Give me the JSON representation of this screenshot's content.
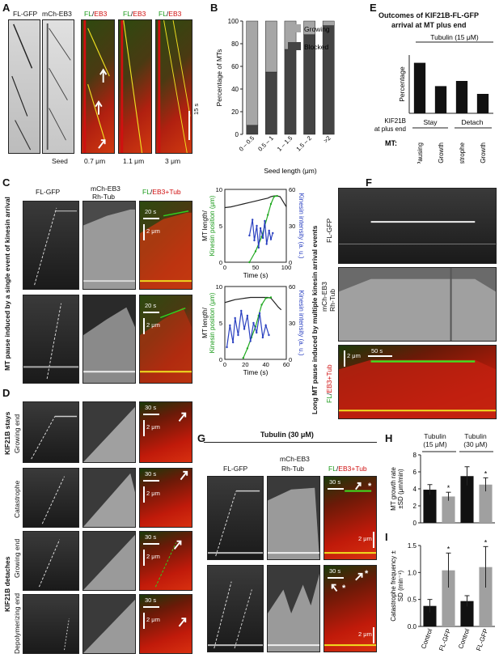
{
  "panelA": {
    "label": "A",
    "ch1": "FL-GFP",
    "ch2": "mCh-EB3",
    "ch3a": "FL",
    "slash": "/",
    "ch3b": "EB3",
    "seed": "Seed",
    "seed1": "0.7 μm",
    "seed2": "1.1 μm",
    "seed3": "3 μm",
    "time": "15 s"
  },
  "panelB": {
    "label": "B"
  },
  "panelC": {
    "label": "C",
    "ch1": "FL-GFP",
    "ch2a": "mCh-EB3",
    "ch2b": "Rh-Tub",
    "ch3a": "FL",
    "slash": "/",
    "ch3b": "EB3+Tub",
    "side": "MT pause induced by  a single event of kinesin arrival",
    "t20a": "20 s",
    "d2a": "2 μm",
    "t20b": "20 s",
    "d2b": "2 μm"
  },
  "panelD": {
    "label": "D",
    "stays": "KIF21B stays",
    "detaches": "KIF21B  detaches",
    "growing1": "Growing end",
    "catastrophe": "Catastrophe",
    "growing2": "Growing end",
    "depoly": "Depolymerizing end",
    "t30": "30 s",
    "d2": "2 μm"
  },
  "panelE": {
    "label": "E",
    "title1": "Outcomes of KIF21B-FL-GFP",
    "title2": "arrival at MT plus end",
    "tubulin": "Tubulin (15 μM)",
    "kif1": "KIF21B",
    "kif2": "at plus end",
    "stay": "Stay",
    "detach": "Detach",
    "mt": "MT:"
  },
  "panelF": {
    "label": "F",
    "ch1": "FL-GFP",
    "ch2a": "mCh-EB3",
    "ch2b": "Rh-Tub",
    "ch3a": "FL",
    "slash": "/",
    "ch3b": "EB3+Tub",
    "side": "Long MT pause induced by multiple kinesin arrival events",
    "t50": "50 s",
    "d2": "2 μm"
  },
  "panelG": {
    "label": "G",
    "header": "Tubulin (30 μM)",
    "ch1": "FL-GFP",
    "ch2a": "mCh-EB3",
    "ch2b": "Rh-Tub",
    "ch3a": "FL",
    "slash": "/",
    "ch3b": "EB3+Tub",
    "t30": "30 s",
    "d2": "2 μm",
    "star": "*"
  },
  "panelH": {
    "label": "H",
    "tub15": "Tubulin (15 μM)",
    "tub30": "Tubulin (30 μM)",
    "star": "*"
  },
  "panelI": {
    "label": "I",
    "star": "*"
  },
  "chart_data": [
    {
      "id": "B",
      "type": "bar",
      "stacked": true,
      "categories": [
        "0 – 0.5",
        "0.5 – 1",
        "1 – 1.5",
        "1.5 – 2",
        ">2"
      ],
      "series": [
        {
          "name": "Blocked",
          "values": [
            8,
            55,
            75,
            88,
            96
          ],
          "color": "#444444"
        },
        {
          "name": "Growing",
          "values": [
            92,
            45,
            25,
            12,
            4
          ],
          "color": "#a6a6a6"
        }
      ],
      "xlabel": "Seed length (μm)",
      "ylabel": "Percentage of MTs",
      "ylim": [
        0,
        100
      ],
      "yticks": [
        0,
        20,
        40,
        60,
        80,
        100
      ],
      "legend": "top-right"
    },
    {
      "id": "C1",
      "type": "line",
      "xlabel": "Time (s)",
      "ylabel_left": "MT length/ Kinesin position (μm)",
      "ylabel_right": "Kinesin intensity (a. u.)",
      "xlim": [
        0,
        100
      ],
      "xticks": [
        0,
        50,
        100
      ],
      "ylim_left": [
        0,
        10
      ],
      "yticks_left": [
        0,
        5,
        10
      ],
      "ylim_right": [
        0,
        60
      ],
      "yticks_right": [
        0,
        30,
        60
      ],
      "series": [
        {
          "name": "MT length",
          "axis": "left",
          "color": "#222222",
          "x": [
            0,
            10,
            20,
            30,
            40,
            50,
            60,
            70,
            75,
            80,
            85,
            90,
            95,
            100
          ],
          "y": [
            7.5,
            7.6,
            7.8,
            8.0,
            8.2,
            8.4,
            8.6,
            8.8,
            9.0,
            9.1,
            9.1,
            9.0,
            8.3,
            7.6
          ]
        },
        {
          "name": "Kinesin position",
          "axis": "left",
          "color": "#22aa22",
          "x": [
            40,
            50,
            60,
            65,
            70,
            75,
            80,
            85
          ],
          "y": [
            0,
            1.5,
            3.5,
            5,
            6.5,
            8,
            9,
            9.1
          ]
        },
        {
          "name": "Kinesin intensity",
          "axis": "right",
          "color": "#2a40c0",
          "x": [
            40,
            45,
            48,
            52,
            55,
            58,
            62,
            65,
            68,
            72,
            75,
            78
          ],
          "y": [
            22,
            35,
            18,
            30,
            12,
            28,
            20,
            34,
            15,
            26,
            19,
            24
          ]
        }
      ]
    },
    {
      "id": "C2",
      "type": "line",
      "xlabel": "Time (s)",
      "ylabel_left": "MT length/ Kinesin position (μm)",
      "ylabel_right": "Kinesin intensity (a. u.)",
      "xlim": [
        0,
        60
      ],
      "xticks": [
        0,
        20,
        40,
        60
      ],
      "ylim_left": [
        0,
        10
      ],
      "yticks_left": [
        0,
        5,
        10
      ],
      "ylim_right": [
        0,
        60
      ],
      "yticks_right": [
        0,
        30,
        60
      ],
      "series": [
        {
          "name": "MT length",
          "axis": "left",
          "color": "#222222",
          "x": [
            0,
            5,
            10,
            15,
            20,
            25,
            30,
            35,
            40,
            42,
            45,
            48,
            52,
            55
          ],
          "y": [
            7.8,
            8.0,
            8.2,
            8.3,
            8.4,
            8.5,
            8.5,
            8.5,
            8.5,
            8.5,
            8.4,
            7.9,
            7.2,
            6.8
          ]
        },
        {
          "name": "Kinesin position",
          "axis": "left",
          "color": "#22aa22",
          "x": [
            18,
            22,
            26,
            30,
            33,
            36,
            40,
            45
          ],
          "y": [
            0.2,
            1.5,
            3,
            4.5,
            6,
            7.5,
            8.4,
            8.5
          ]
        },
        {
          "name": "Kinesin intensity",
          "axis": "right",
          "color": "#2a40c0",
          "x": [
            2,
            5,
            8,
            10,
            13,
            16,
            19,
            22,
            25,
            28,
            31,
            34,
            37,
            40,
            43
          ],
          "y": [
            10,
            28,
            14,
            34,
            20,
            40,
            25,
            36,
            15,
            30,
            22,
            38,
            18,
            28,
            20
          ]
        }
      ]
    },
    {
      "id": "E",
      "type": "bar",
      "categories": [
        "Pausing",
        "Growth",
        "Catastrophe",
        "Growth"
      ],
      "values": [
        39,
        21,
        25,
        15
      ],
      "ylabel": "Percentage",
      "ylim": [
        0,
        45
      ],
      "color": "#111111"
    },
    {
      "id": "H",
      "type": "bar",
      "categories": [
        "Control",
        "FL-GFP",
        "Control",
        "FL-GFP"
      ],
      "values": [
        3.9,
        3.1,
        5.5,
        4.5
      ],
      "errors": [
        0.6,
        0.5,
        1.1,
        0.8
      ],
      "colors": [
        "#111111",
        "#a0a0a0",
        "#111111",
        "#a0a0a0"
      ],
      "ylabel": "MT growth rate ±SD (μm/min)",
      "ylim": [
        0,
        8
      ],
      "yticks": [
        0,
        2,
        4,
        6,
        8
      ],
      "significant": [
        false,
        true,
        false,
        true
      ]
    },
    {
      "id": "I",
      "type": "bar",
      "categories": [
        "Control",
        "FL-GFP",
        "Control",
        "FL-GFP"
      ],
      "values": [
        0.38,
        1.04,
        0.47,
        1.1
      ],
      "errors": [
        0.12,
        0.32,
        0.1,
        0.38
      ],
      "colors": [
        "#111111",
        "#a0a0a0",
        "#111111",
        "#a0a0a0"
      ],
      "ylabel": "Catastrophe frequency ± SD (min⁻¹)",
      "ylim": [
        0,
        1.5
      ],
      "yticks": [
        0,
        0.5,
        1.0,
        1.5
      ],
      "significant": [
        false,
        true,
        false,
        true
      ]
    }
  ]
}
